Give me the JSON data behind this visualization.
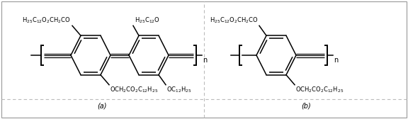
{
  "background_color": "#ffffff",
  "text_color": "#000000",
  "fig_width": 5.76,
  "fig_height": 1.68,
  "dpi": 100,
  "label_a": "(a)",
  "label_b": "(b)"
}
